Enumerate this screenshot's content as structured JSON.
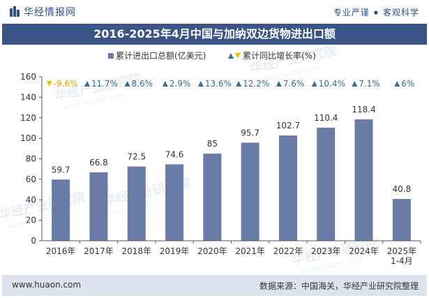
{
  "header": {
    "logo_text": "华经情报网",
    "slogan_left": "专业严谨",
    "slogan_sep": "●",
    "slogan_right": "客观科学"
  },
  "watermark_text": "华经产业研究院",
  "watermark_url": "www.huaon.com",
  "footer": {
    "url": "www.huaon.com",
    "source": "数据来源：中国海关，华经产业研究院整理"
  },
  "colors": {
    "bar": "#6b7ba8",
    "title_bg": "#3a5486",
    "up_marker": "#3a6e8f",
    "down_marker": "#f2c200",
    "down_text": "#e8a000",
    "up_text": "#3a6e8f"
  },
  "chart_data": {
    "type": "bar",
    "title": "2016-2025年4月中国与加纳双边货物进出口额",
    "categories": [
      "2016年",
      "2017年",
      "2018年",
      "2019年",
      "2020年",
      "2021年",
      "2022年",
      "2023年",
      "2024年",
      "2025年\n1-4月"
    ],
    "series": [
      {
        "name": "累计进出口总额(亿美元)",
        "values": [
          59.7,
          66.8,
          72.5,
          74.6,
          85,
          95.7,
          102.7,
          110.4,
          118.4,
          40.8
        ],
        "labels": [
          "59.7",
          "66.8",
          "72.5",
          "74.6",
          "85",
          "95.7",
          "102.7",
          "110.4",
          "118.4",
          "40.8"
        ]
      },
      {
        "name": "累计同比增长率(%)",
        "values": [
          -9.6,
          11.7,
          8.6,
          2.9,
          13.6,
          12.2,
          7.6,
          10.4,
          7.1,
          6
        ],
        "labels": [
          "-9.6%",
          "11.7%",
          "8.6%",
          "2.9%",
          "13.6%",
          "12.2%",
          "7.6%",
          "10.4%",
          "7.1%",
          "6%"
        ]
      }
    ],
    "ylim": [
      0,
      160
    ],
    "yticks": [
      "0",
      "20",
      "40",
      "60",
      "80",
      "100",
      "120",
      "140",
      "160"
    ],
    "ytick_values": [
      0,
      20,
      40,
      60,
      80,
      100,
      120,
      140,
      160
    ],
    "legend_position": "top-center",
    "grid": false
  }
}
